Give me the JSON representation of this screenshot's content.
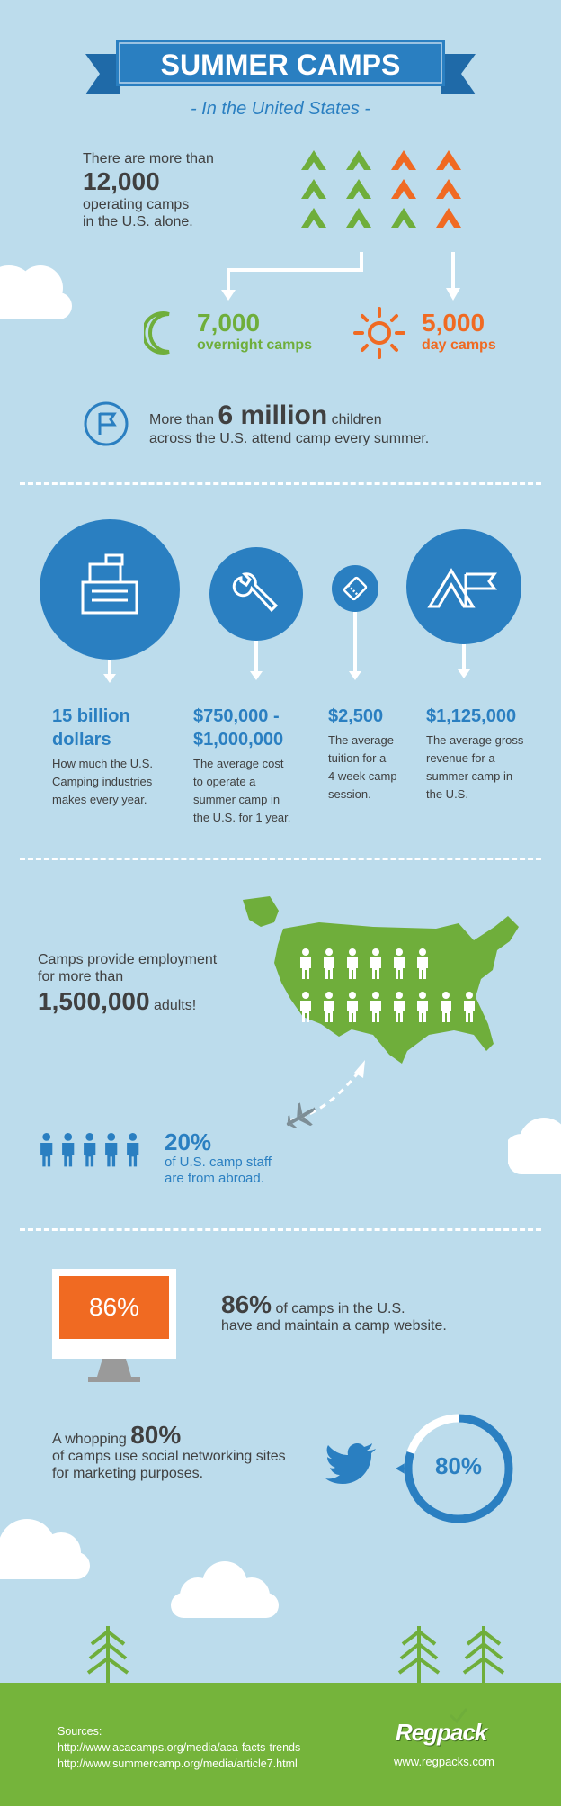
{
  "header": {
    "title": "SUMMER CAMPS",
    "subtitle": "- In the United States -"
  },
  "intro": {
    "pre": "There are more than",
    "number": "12,000",
    "post_line1": "operating camps",
    "post_line2": "in the U.S. alone."
  },
  "overnight": {
    "number": "7,000",
    "label": "overnight camps"
  },
  "day": {
    "number": "5,000",
    "label": "day camps"
  },
  "children": {
    "pre": "More than",
    "number": "6 million",
    "post": "children",
    "line2": "across the U.S. attend camp every summer."
  },
  "stats": [
    {
      "value_line1": "15 billion",
      "value_line2": "dollars",
      "desc": [
        "How much the U.S.",
        "Camping industries",
        "makes every year."
      ]
    },
    {
      "value_line1": "$750,000 -",
      "value_line2": "$1,000,000",
      "desc": [
        "The average cost",
        "to operate a",
        "summer camp in",
        "the U.S. for 1 year."
      ]
    },
    {
      "value_line1": "$2,500",
      "value_line2": "",
      "desc": [
        "The average",
        "tuition for a",
        "4 week camp",
        "session."
      ]
    },
    {
      "value_line1": "$1,125,000",
      "value_line2": "",
      "desc": [
        "The average gross",
        "revenue for a",
        "summer camp in",
        "the U.S."
      ]
    }
  ],
  "employment": {
    "line1": "Camps provide employment",
    "line2": "for more than",
    "number": "1,500,000",
    "post": "adults!"
  },
  "abroad": {
    "percent": "20%",
    "line1": "of U.S. camp staff",
    "line2": "are from abroad."
  },
  "website": {
    "screen_value": "86%",
    "percent": "86%",
    "line1": "of camps in the U.S.",
    "line2": "have and maintain a camp website.",
    "share": 0.86
  },
  "social": {
    "pre": "A whopping",
    "percent": "80%",
    "line1": "of camps use social networking sites",
    "line2": "for marketing purposes.",
    "ring_value": "80%",
    "share": 0.8
  },
  "footer": {
    "sources_label": "Sources:",
    "source1": "http://www.acacamps.org/media/aca-facts-trends",
    "source2": "http://www.summercamp.org/media/article7.html",
    "brand": "Regpack",
    "website": "www.regpacks.com"
  },
  "colors": {
    "background": "#bcdcec",
    "blue": "#2a7fc1",
    "green": "#6fae3b",
    "orange": "#f06a22",
    "ground": "#75b43b"
  },
  "icons": [
    "tent-icon",
    "moon-icon",
    "sun-icon",
    "flag-icon",
    "cash-register-icon",
    "wrench-icon",
    "ticket-icon",
    "tent-flag-icon",
    "usa-map",
    "person-icon",
    "airplane-icon",
    "monitor-icon",
    "twitter-bird-icon",
    "tree-icon",
    "cloud"
  ]
}
